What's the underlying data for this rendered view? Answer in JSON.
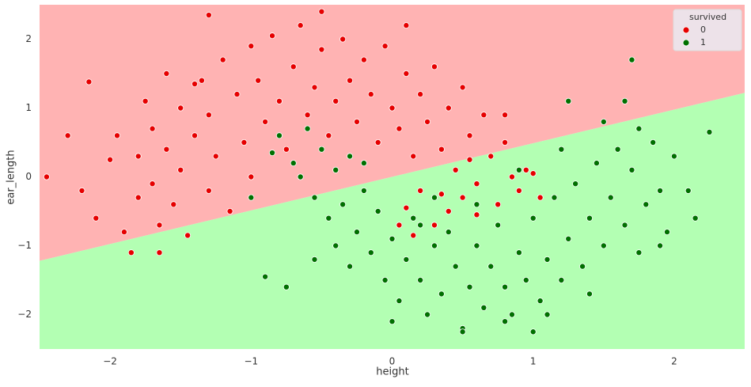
{
  "chart_data": {
    "type": "scatter",
    "x_label": "height",
    "y_label": "ear_length",
    "xlim": [
      -2.5,
      2.5
    ],
    "ylim": [
      -2.5,
      2.5
    ],
    "xticks": [
      {
        "value": -2,
        "label": "−2"
      },
      {
        "value": -1,
        "label": "−1"
      },
      0,
      1,
      2
    ],
    "yticks": [
      {
        "value": -2,
        "label": "−2"
      },
      {
        "value": -1,
        "label": "−1"
      },
      0,
      1,
      2
    ],
    "grid": false,
    "legend_title": "survived",
    "legend_position": "upper right",
    "regions": {
      "boundary_x": [
        -2.5,
        2.5
      ],
      "boundary_y": [
        -1.22,
        1.22
      ],
      "above_color": "#ffb3b3",
      "below_color": "#b3ffb3"
    },
    "series": [
      {
        "name": "0",
        "color": "#e60000",
        "x": [
          -2.45,
          -2.3,
          -2.2,
          -2.15,
          -2.1,
          -2.0,
          -1.95,
          -1.9,
          -1.85,
          -1.8,
          -1.8,
          -1.75,
          -1.7,
          -1.7,
          -1.65,
          -1.6,
          -1.6,
          -1.55,
          -1.5,
          -1.5,
          -1.45,
          -1.4,
          -1.35,
          -1.3,
          -1.3,
          -1.25,
          -1.2,
          -1.15,
          -1.1,
          -1.05,
          -1.0,
          -1.0,
          -0.95,
          -0.9,
          -0.85,
          -0.8,
          -0.75,
          -0.7,
          -0.65,
          -0.6,
          -0.55,
          -0.5,
          -0.45,
          -0.4,
          -0.35,
          -0.3,
          -0.25,
          -0.2,
          -0.15,
          -0.1,
          -0.05,
          0.0,
          0.05,
          0.1,
          0.1,
          0.15,
          0.2,
          0.25,
          0.3,
          0.35,
          0.4,
          0.45,
          0.5,
          0.5,
          0.55,
          0.6,
          0.65,
          0.7,
          0.75,
          0.8,
          0.85,
          0.9,
          0.95,
          1.05,
          1.0,
          0.3,
          0.2,
          0.1,
          0.4,
          0.6,
          0.15,
          0.05,
          -1.4,
          -1.65,
          -0.5,
          -1.3,
          0.8,
          0.35,
          0.55
        ],
        "values": [
          0.0,
          0.6,
          -0.2,
          1.38,
          -0.6,
          0.25,
          0.6,
          -0.8,
          -1.1,
          0.3,
          -0.3,
          1.1,
          0.7,
          -0.1,
          -0.7,
          0.4,
          1.5,
          -0.4,
          1.0,
          0.1,
          -0.85,
          0.6,
          1.4,
          -0.2,
          0.9,
          0.3,
          1.7,
          -0.5,
          1.2,
          0.5,
          1.9,
          0.0,
          1.4,
          0.8,
          2.05,
          1.1,
          0.4,
          1.6,
          2.2,
          0.9,
          1.3,
          1.85,
          0.6,
          1.1,
          2.0,
          1.4,
          0.8,
          1.7,
          1.2,
          0.5,
          1.9,
          1.0,
          0.7,
          1.5,
          2.2,
          0.3,
          1.2,
          0.8,
          1.6,
          0.4,
          1.0,
          0.1,
          1.3,
          -0.3,
          0.6,
          -0.1,
          0.9,
          0.3,
          -0.4,
          0.5,
          0.0,
          -0.2,
          0.1,
          -0.3,
          0.05,
          -0.7,
          -0.2,
          -0.45,
          -0.5,
          -0.55,
          -0.85,
          -0.7,
          1.35,
          -1.1,
          2.4,
          2.35,
          0.9,
          -0.25,
          0.25
        ]
      },
      {
        "name": "1",
        "color": "#007000",
        "x": [
          -0.8,
          -0.7,
          -0.65,
          -0.6,
          -0.55,
          -0.5,
          -0.45,
          -0.4,
          -0.4,
          -0.35,
          -0.3,
          -0.3,
          -0.25,
          -0.2,
          -0.15,
          -0.1,
          -0.05,
          0.0,
          0.05,
          0.1,
          0.15,
          0.2,
          0.25,
          0.3,
          0.35,
          0.4,
          0.45,
          0.5,
          0.55,
          0.6,
          0.65,
          0.7,
          0.75,
          0.8,
          0.85,
          0.9,
          0.95,
          1.0,
          1.05,
          1.1,
          1.15,
          1.2,
          1.25,
          1.3,
          1.35,
          1.4,
          1.45,
          1.5,
          1.55,
          1.6,
          1.65,
          1.7,
          1.75,
          1.8,
          1.85,
          1.9,
          1.95,
          2.0,
          2.1,
          2.15,
          2.25,
          1.7,
          1.25,
          1.65,
          1.5,
          -1.0,
          -0.9,
          -0.75,
          -0.85,
          -0.55,
          0.0,
          0.5,
          0.8,
          1.0,
          0.3,
          0.6,
          0.2,
          1.4,
          1.1,
          1.9,
          1.75,
          -0.2,
          0.9,
          1.2
        ],
        "values": [
          0.6,
          0.2,
          0.0,
          0.7,
          -0.3,
          0.4,
          -0.6,
          0.1,
          -1.0,
          -0.4,
          0.3,
          -1.3,
          -0.8,
          -0.2,
          -1.1,
          -0.5,
          -1.5,
          -0.9,
          -1.8,
          -1.2,
          -0.6,
          -1.5,
          -2.0,
          -1.0,
          -1.7,
          -0.8,
          -1.3,
          -2.2,
          -1.6,
          -1.0,
          -1.9,
          -1.3,
          -0.7,
          -1.6,
          -2.0,
          -1.1,
          -1.5,
          -0.6,
          -1.8,
          -1.2,
          -0.3,
          -1.5,
          -0.9,
          -0.1,
          -1.3,
          -0.6,
          0.2,
          -1.0,
          -0.3,
          0.4,
          -0.7,
          0.1,
          -1.1,
          -0.4,
          0.5,
          -0.2,
          -0.8,
          0.3,
          -0.2,
          -0.6,
          0.65,
          1.7,
          1.1,
          1.1,
          0.8,
          -0.3,
          -1.45,
          -1.6,
          0.35,
          -1.2,
          -2.1,
          -2.25,
          -2.1,
          -2.25,
          -0.3,
          -0.4,
          -0.7,
          -1.7,
          -2.0,
          -1.0,
          0.7,
          0.2,
          0.1,
          0.4
        ]
      }
    ]
  }
}
